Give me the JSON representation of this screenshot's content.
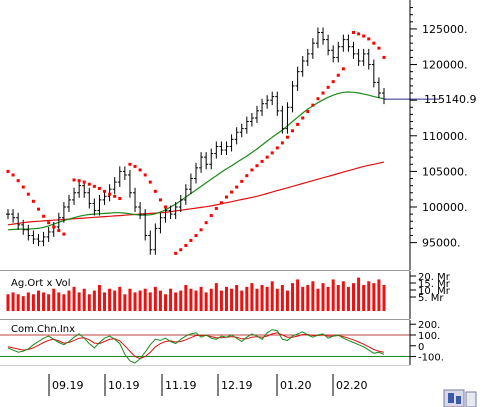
{
  "chart_data": {
    "type": "line",
    "main": {
      "y_ticks": [
        95000,
        100000,
        105000,
        110000,
        115000,
        120000,
        125000
      ],
      "y_tick_labels": [
        "95000.",
        "100000.",
        "105000.",
        "110000.",
        "",
        "120000.",
        "125000."
      ],
      "ylim": [
        92000,
        128500
      ],
      "last_value": 115140.9,
      "last_value_label": "115140.9",
      "price_color": "#000000",
      "ma_short_color": "#1a8a1a",
      "ma_long_color": "#e01010",
      "sar_color": "#ff0000",
      "price": [
        99000,
        98500,
        97500,
        96800,
        96000,
        95500,
        95200,
        95800,
        96500,
        97200,
        98500,
        100000,
        101000,
        102000,
        103000,
        102000,
        100500,
        99500,
        101000,
        101500,
        102500,
        103500,
        105000,
        104500,
        102000,
        100000,
        99000,
        96000,
        94000,
        97000,
        98500,
        99500,
        99000,
        100000,
        101000,
        102500,
        104000,
        105500,
        107000,
        106000,
        107500,
        108500,
        108000,
        108500,
        109500,
        110500,
        111000,
        112000,
        112500,
        113500,
        114500,
        115000,
        115500,
        113500,
        111000,
        114000,
        117000,
        119000,
        120500,
        121500,
        123000,
        124500,
        123500,
        122000,
        121000,
        122500,
        123500,
        122500,
        121500,
        120500,
        121500,
        120000,
        117500,
        116000,
        115140.9
      ],
      "ma_short": [
        96800,
        96850,
        96900,
        96900,
        96900,
        96950,
        97000,
        97150,
        97350,
        97600,
        97850,
        98100,
        98300,
        98500,
        98700,
        98850,
        98950,
        99000,
        99050,
        99100,
        99150,
        99200,
        99200,
        99150,
        99050,
        98950,
        98850,
        98850,
        98900,
        99050,
        99300,
        99600,
        100000,
        100400,
        100900,
        101400,
        101900,
        102400,
        102900,
        103400,
        103900,
        104400,
        104900,
        105350,
        105800,
        106250,
        106700,
        107150,
        107650,
        108150,
        108700,
        109250,
        109800,
        110300,
        110800,
        111400,
        112000,
        112600,
        113200,
        113750,
        114200,
        114650,
        115050,
        115400,
        115700,
        115950,
        116100,
        116150,
        116100,
        116000,
        115850,
        115700,
        115500,
        115350,
        115200
      ],
      "ma_long": [
        97500,
        97600,
        97700,
        97800,
        97900,
        97950,
        98000,
        98050,
        98100,
        98150,
        98200,
        98250,
        98300,
        98350,
        98400,
        98450,
        98500,
        98550,
        98600,
        98650,
        98700,
        98750,
        98800,
        98850,
        98900,
        98950,
        99000,
        99050,
        99100,
        99150,
        99200,
        99250,
        99350,
        99450,
        99550,
        99650,
        99750,
        99850,
        99950,
        100050,
        100150,
        100300,
        100450,
        100600,
        100750,
        100900,
        101050,
        101200,
        101350,
        101500,
        101700,
        101900,
        102100,
        102300,
        102500,
        102700,
        102900,
        103100,
        103300,
        103500,
        103700,
        103900,
        104100,
        104300,
        104500,
        104700,
        104900,
        105100,
        105300,
        105500,
        105700,
        105850,
        106000,
        106150,
        106300
      ],
      "sar": [
        105000,
        104500,
        103700,
        102800,
        101800,
        100800,
        99700,
        98700,
        97800,
        97200,
        96700,
        96200,
        null,
        103800,
        103700,
        103500,
        103200,
        102900,
        102600,
        102200,
        101800,
        101500,
        101200,
        null,
        106000,
        105700,
        105200,
        104500,
        103500,
        102200,
        101000,
        100000,
        null,
        93500,
        94000,
        94600,
        95300,
        96000,
        96800,
        97800,
        98800,
        99800,
        100600,
        101400,
        102100,
        102800,
        103600,
        104400,
        105200,
        105800,
        106400,
        107000,
        107600,
        108300,
        109000,
        109800,
        110700,
        111600,
        112500,
        113400,
        114300,
        115200,
        116000,
        116800,
        117600,
        118500,
        119400,
        null,
        124500,
        124300,
        124000,
        123600,
        123000,
        122300,
        121000
      ]
    },
    "volume": {
      "label": "Ag.Ort x Vol",
      "y_tick_labels": [
        "20. Mr",
        "15. Mr",
        "10. Mr",
        "5. Mr"
      ],
      "bar_color": "#ee1111",
      "values": [
        9,
        10,
        9,
        8,
        10,
        9,
        11,
        10,
        9,
        12,
        10,
        9,
        11,
        13,
        10,
        12,
        9,
        11,
        14,
        10,
        12,
        11,
        13,
        9,
        12,
        10,
        11,
        12,
        10,
        13,
        11,
        9,
        12,
        10,
        11,
        14,
        12,
        11,
        13,
        10,
        12,
        15,
        11,
        13,
        12,
        14,
        11,
        13,
        15,
        12,
        14,
        13,
        16,
        12,
        14,
        11,
        15,
        17,
        13,
        14,
        16,
        12,
        15,
        13,
        17,
        14,
        16,
        13,
        15,
        18,
        14,
        16,
        15,
        17,
        14
      ]
    },
    "oscillator": {
      "label": "Com.Chn.Inx",
      "y_ticks": [
        -100,
        0,
        100,
        200
      ],
      "y_tick_labels": [
        "-100.",
        "0",
        "100.",
        "200."
      ],
      "ylim": [
        -160,
        230
      ],
      "line_color": "#1a8a1a",
      "signal_color": "#e01010",
      "band_color": "#c04040",
      "values": [
        -20,
        -40,
        -60,
        -50,
        -30,
        10,
        40,
        70,
        90,
        60,
        30,
        10,
        40,
        80,
        110,
        70,
        20,
        -20,
        30,
        70,
        90,
        60,
        20,
        -80,
        -140,
        -160,
        -120,
        -60,
        10,
        60,
        50,
        70,
        40,
        20,
        60,
        90,
        110,
        120,
        80,
        100,
        70,
        60,
        90,
        80,
        100,
        70,
        40,
        80,
        110,
        90,
        60,
        120,
        150,
        140,
        60,
        50,
        90,
        110,
        130,
        100,
        80,
        100,
        110,
        70,
        90,
        100,
        70,
        50,
        30,
        10,
        -10,
        -40,
        -70,
        -60,
        -80
      ],
      "signal": [
        -10,
        -20,
        -30,
        -40,
        -35,
        -20,
        5,
        30,
        50,
        60,
        45,
        25,
        30,
        50,
        70,
        75,
        55,
        25,
        20,
        40,
        60,
        65,
        45,
        0,
        -50,
        -100,
        -120,
        -100,
        -60,
        -10,
        20,
        40,
        45,
        35,
        40,
        55,
        75,
        95,
        95,
        95,
        85,
        75,
        75,
        80,
        85,
        80,
        65,
        65,
        80,
        85,
        80,
        90,
        110,
        120,
        100,
        80,
        80,
        90,
        105,
        105,
        95,
        95,
        100,
        90,
        90,
        95,
        85,
        70,
        55,
        35,
        15,
        -10,
        -35,
        -50,
        -60
      ]
    },
    "x_tick_labels": [
      "09.19",
      "10.19",
      "11.19",
      "12.19",
      "01.20",
      "02.20"
    ]
  }
}
